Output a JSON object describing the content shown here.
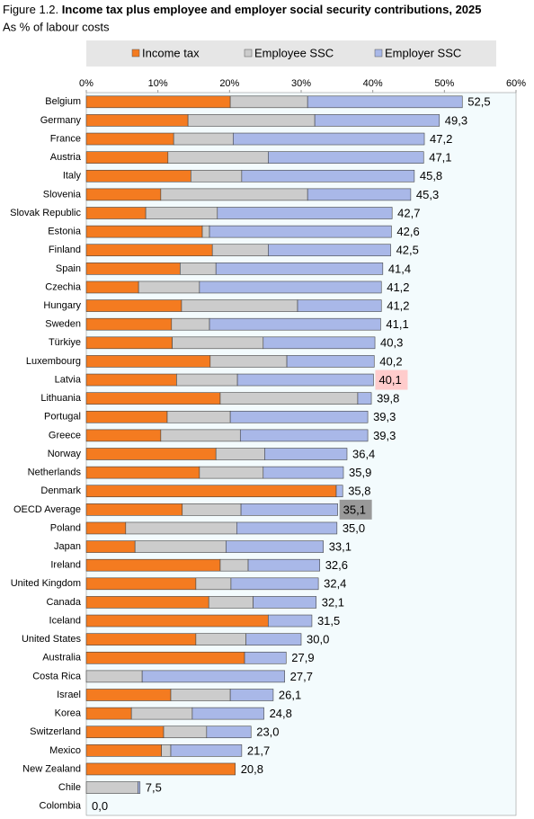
{
  "chart_data": {
    "type": "stacked_barh",
    "figure_label": "Figure 1.2.",
    "title": "Income tax plus employee and employer social security contributions, 2025",
    "subtitle": "As % of labour costs",
    "categories": [
      "Belgium",
      "Germany",
      "France",
      "Austria",
      "Italy",
      "Slovenia",
      "Slovak Republic",
      "Estonia",
      "Finland",
      "Spain",
      "Czechia",
      "Hungary",
      "Sweden",
      "Türkiye",
      "Luxembourg",
      "Latvia",
      "Lithuania",
      "Portugal",
      "Greece",
      "Norway",
      "Netherlands",
      "Denmark",
      "OECD Average",
      "Poland",
      "Japan",
      "Ireland",
      "United Kingdom",
      "Canada",
      "Iceland",
      "United States",
      "Australia",
      "Costa Rica",
      "Israel",
      "Korea",
      "Switzerland",
      "Mexico",
      "New Zealand",
      "Chile",
      "Colombia"
    ],
    "series": [
      {
        "name": "Income tax",
        "color": "#f47b20",
        "values": [
          20.1,
          14.2,
          12.2,
          11.4,
          14.6,
          10.4,
          8.3,
          16.2,
          17.6,
          13.1,
          7.3,
          13.3,
          11.9,
          12.0,
          17.3,
          12.6,
          18.7,
          11.3,
          10.4,
          18.1,
          15.8,
          34.9,
          13.4,
          5.5,
          6.8,
          18.7,
          15.3,
          17.1,
          25.4,
          15.3,
          22.1,
          0,
          11.8,
          6.3,
          10.8,
          10.5,
          20.8,
          0,
          0
        ]
      },
      {
        "name": "Employee SSC",
        "color": "#cccccc",
        "values": [
          10.8,
          17.7,
          8.3,
          14.0,
          7.1,
          20.5,
          10.0,
          1.0,
          7.8,
          5.0,
          8.5,
          16.2,
          5.3,
          12.7,
          10.7,
          8.5,
          19.2,
          8.8,
          11.1,
          6.8,
          8.9,
          0,
          8.2,
          15.5,
          12.7,
          3.9,
          4.9,
          6.2,
          0,
          7.0,
          0,
          7.8,
          8.3,
          8.5,
          6.0,
          1.3,
          0,
          7.2,
          0
        ]
      },
      {
        "name": "Employer SSC",
        "color": "#a9b8e8",
        "values": [
          21.6,
          17.4,
          26.7,
          21.7,
          24.1,
          14.4,
          24.4,
          25.4,
          17.1,
          23.3,
          25.4,
          11.7,
          23.9,
          15.6,
          12.2,
          19.0,
          1.9,
          19.2,
          17.8,
          11.5,
          11.2,
          0.9,
          13.5,
          14.0,
          13.6,
          10.0,
          12.2,
          8.8,
          6.1,
          7.7,
          5.8,
          19.9,
          6.0,
          10.0,
          6.2,
          9.9,
          0,
          0.3,
          0
        ]
      }
    ],
    "totals": [
      52.5,
      49.3,
      47.2,
      47.1,
      45.8,
      45.3,
      42.7,
      42.6,
      42.5,
      41.4,
      41.2,
      41.2,
      41.1,
      40.3,
      40.2,
      40.1,
      39.8,
      39.3,
      39.3,
      36.4,
      35.9,
      35.8,
      35.1,
      35.0,
      33.1,
      32.6,
      32.4,
      32.1,
      31.5,
      30.0,
      27.9,
      27.7,
      26.1,
      24.8,
      23.0,
      21.7,
      20.8,
      7.5,
      0.0
    ],
    "total_labels": [
      "52,5",
      "49,3",
      "47,2",
      "47,1",
      "45,8",
      "45,3",
      "42,7",
      "42,6",
      "42,5",
      "41,4",
      "41,2",
      "41,2",
      "41,1",
      "40,3",
      "40,2",
      "40,1",
      "39,8",
      "39,3",
      "39,3",
      "36,4",
      "35,9",
      "35,8",
      "35,1",
      "35,0",
      "33,1",
      "32,6",
      "32,4",
      "32,1",
      "31,5",
      "30,0",
      "27,9",
      "27,7",
      "26,1",
      "24,8",
      "23,0",
      "21,7",
      "20,8",
      "7,5",
      "0,0"
    ],
    "total_label_backgrounds": [
      null,
      null,
      null,
      null,
      null,
      null,
      null,
      null,
      null,
      null,
      null,
      null,
      null,
      null,
      null,
      "#ffcccc",
      null,
      null,
      null,
      null,
      null,
      null,
      "#999999",
      null,
      null,
      null,
      null,
      null,
      null,
      null,
      null,
      null,
      null,
      null,
      null,
      null,
      null,
      null,
      null
    ],
    "xlim": [
      0,
      60
    ],
    "xticks": [
      {
        "value": 0,
        "label": "0%"
      },
      {
        "value": 10,
        "label": "10%"
      },
      {
        "value": 20,
        "label": "20%"
      },
      {
        "value": 30,
        "label": "30%"
      },
      {
        "value": 40,
        "label": "40%"
      },
      {
        "value": 50,
        "label": "50%"
      },
      {
        "value": 60,
        "label": "60%"
      }
    ],
    "grid": false,
    "legend": "top",
    "plot_background": "#f3fbfd"
  }
}
